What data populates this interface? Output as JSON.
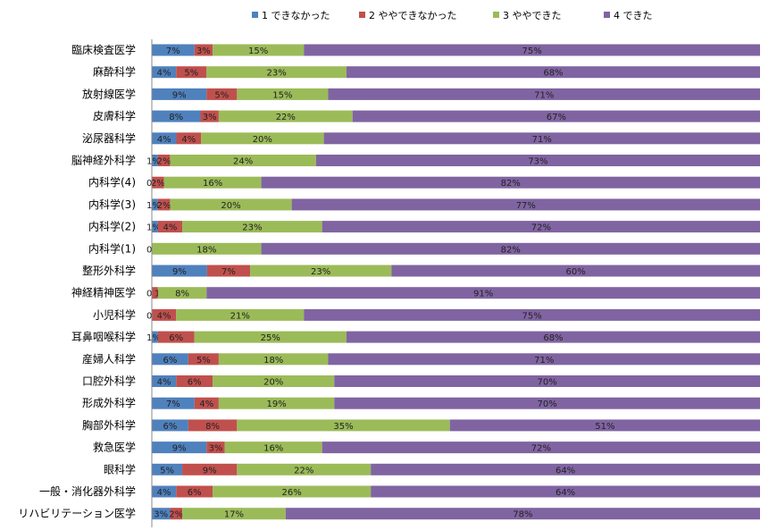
{
  "chart_data": {
    "type": "bar",
    "orientation": "horizontal",
    "stacked": "percent",
    "legend_position": "top",
    "xlim": [
      0,
      100
    ],
    "grid": false,
    "categories": [
      "臨床検査医学",
      "麻酔科学",
      "放射線医学",
      "皮膚科学",
      "泌尿器科学",
      "脳神経外科学",
      "内科学(4)",
      "内科学(3)",
      "内科学(2)",
      "内科学(1)",
      "整形外科学",
      "神経精神医学",
      "小児科学",
      "耳鼻咽喉科学",
      "産婦人科学",
      "口腔外科学",
      "形成外科学",
      "胸部外科学",
      "救急医学",
      "眼科学",
      "一般・消化器外科学",
      "リハビリテーション医学"
    ],
    "series": [
      {
        "name": "1 できなかった",
        "color": "#4F81BD",
        "values": [
          7,
          4,
          9,
          8,
          4,
          1,
          0,
          1,
          1,
          0,
          9,
          0,
          0,
          1,
          6,
          4,
          7,
          6,
          9,
          5,
          4,
          3
        ]
      },
      {
        "name": "2 ややできなかった",
        "color": "#C0504D",
        "values": [
          3,
          5,
          5,
          3,
          4,
          2,
          2,
          2,
          4,
          0,
          7,
          1,
          4,
          6,
          5,
          6,
          4,
          8,
          3,
          9,
          6,
          2
        ]
      },
      {
        "name": "3 ややできた",
        "color": "#9BBB59",
        "values": [
          15,
          23,
          15,
          22,
          20,
          24,
          16,
          20,
          23,
          18,
          23,
          8,
          21,
          25,
          18,
          20,
          19,
          35,
          16,
          22,
          26,
          17
        ]
      },
      {
        "name": "4 できた",
        "color": "#8064A2",
        "values": [
          75,
          68,
          71,
          67,
          71,
          73,
          82,
          77,
          72,
          82,
          60,
          91,
          75,
          68,
          71,
          70,
          70,
          51,
          72,
          64,
          64,
          78
        ]
      }
    ],
    "labels": [
      [
        "7%",
        "3%",
        "15%",
        "75%"
      ],
      [
        "4%",
        "5%",
        "23%",
        "68%"
      ],
      [
        "9%",
        "5%",
        "15%",
        "71%"
      ],
      [
        "8%",
        "3%",
        "22%",
        "67%"
      ],
      [
        "4%",
        "4%",
        "20%",
        "71%"
      ],
      [
        "1%",
        "2%",
        "24%",
        "73%"
      ],
      [
        "0%",
        "2%",
        "16%",
        "82%"
      ],
      [
        "1%",
        "2%",
        "20%",
        "77%"
      ],
      [
        "1%",
        "4%",
        "23%",
        "72%"
      ],
      [
        "0%",
        "0%",
        "18%",
        "82%"
      ],
      [
        "9%",
        "7%",
        "23%",
        "60%"
      ],
      [
        "0%",
        "1%",
        "8%",
        "91%"
      ],
      [
        "0%",
        "4%",
        "21%",
        "75%"
      ],
      [
        "1%",
        "6%",
        "25%",
        "68%"
      ],
      [
        "6%",
        "5%",
        "18%",
        "71%"
      ],
      [
        "4%",
        "6%",
        "20%",
        "70%"
      ],
      [
        "7%",
        "4%",
        "19%",
        "70%"
      ],
      [
        "6%",
        "8%",
        "35%",
        "51%"
      ],
      [
        "9%",
        "3%",
        "16%",
        "72%"
      ],
      [
        "5%",
        "9%",
        "22%",
        "64%"
      ],
      [
        "4%",
        "6%",
        "26%",
        "64%"
      ],
      [
        "3%",
        "2%",
        "17%",
        "78%"
      ]
    ]
  }
}
